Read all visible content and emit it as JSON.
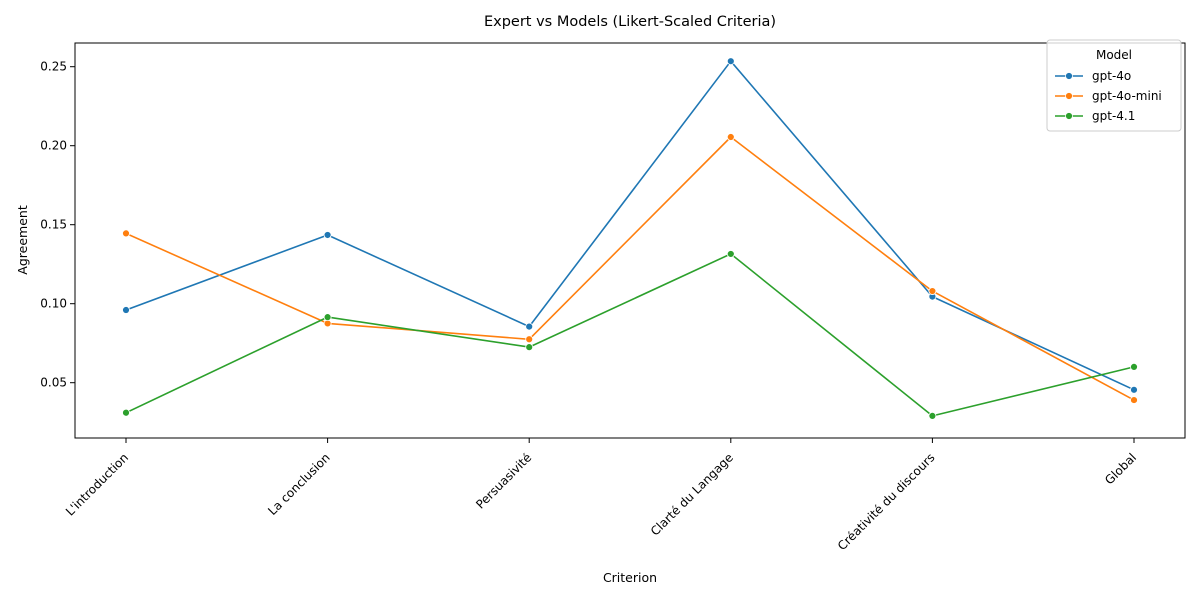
{
  "chart_data": {
    "type": "line",
    "title": "Expert vs Models (Likert-Scaled Criteria)",
    "xlabel": "Criterion",
    "ylabel": "Agreement",
    "categories": [
      "L'introduction",
      "La conclusion",
      "Persuasivité",
      "Clarté du Langage",
      "Créativité du discours",
      "Global"
    ],
    "yticks": [
      "0.05",
      "0.10",
      "0.15",
      "0.20",
      "0.25"
    ],
    "ylim": [
      0.015,
      0.265
    ],
    "grid": false,
    "legend": {
      "title": "Model",
      "position": "top-right"
    },
    "series": [
      {
        "name": "gpt-4o",
        "color": "#1f77b4",
        "values": [
          0.096,
          0.1435,
          0.0855,
          0.2535,
          0.1045,
          0.0455
        ]
      },
      {
        "name": "gpt-4o-mini",
        "color": "#ff7f0e",
        "values": [
          0.1445,
          0.0875,
          0.0775,
          0.2055,
          0.108,
          0.039
        ]
      },
      {
        "name": "gpt-4.1",
        "color": "#2ca02c",
        "values": [
          0.031,
          0.0915,
          0.0725,
          0.1315,
          0.029,
          0.06
        ]
      }
    ]
  }
}
